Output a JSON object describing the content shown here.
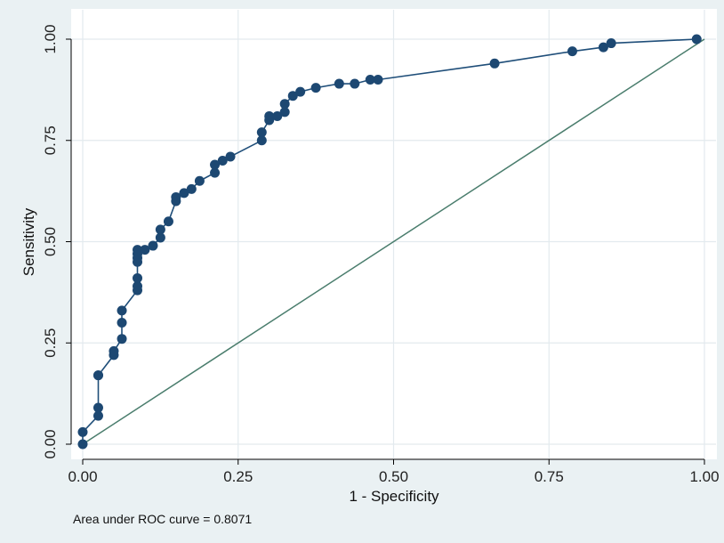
{
  "chart_data": {
    "type": "line",
    "xlabel": "1 - Specificity",
    "ylabel": "Sensitivity",
    "xlim": [
      0,
      1
    ],
    "ylim": [
      0,
      1
    ],
    "x_ticks": [
      "0.00",
      "0.25",
      "0.50",
      "0.75",
      "1.00"
    ],
    "y_ticks": [
      "0.00",
      "0.25",
      "0.50",
      "0.75",
      "1.00"
    ],
    "grid": true,
    "note": "Area under ROC curve = 0.8071",
    "colors": {
      "curve": "#1f4e79",
      "marker": "#1d4872",
      "reference": "#4a7d6d",
      "grid": "#e3eaee",
      "plot_bg": "#ffffff",
      "outer_bg": "#eaf1f3"
    },
    "series": [
      {
        "x": [
          0.0,
          0.0,
          0.025,
          0.025,
          0.025,
          0.025,
          0.05,
          0.05,
          0.063,
          0.063,
          0.063,
          0.088,
          0.088,
          0.088,
          0.088,
          0.088,
          0.088,
          0.088,
          0.1,
          0.113,
          0.125,
          0.125,
          0.138,
          0.15,
          0.15,
          0.163,
          0.175,
          0.188,
          0.2125,
          0.2125,
          0.225,
          0.2375,
          0.288,
          0.288,
          0.3,
          0.3,
          0.313,
          0.325,
          0.325,
          0.338,
          0.35,
          0.375,
          0.4125,
          0.4375,
          0.4625,
          0.475,
          0.6625,
          0.7875,
          0.8375,
          0.85,
          0.9875
        ],
        "y": [
          0.0,
          0.03,
          0.07,
          0.09,
          0.17,
          0.17,
          0.22,
          0.23,
          0.26,
          0.3,
          0.33,
          0.38,
          0.39,
          0.41,
          0.45,
          0.46,
          0.47,
          0.48,
          0.48,
          0.49,
          0.51,
          0.53,
          0.55,
          0.6,
          0.61,
          0.62,
          0.63,
          0.65,
          0.67,
          0.69,
          0.7,
          0.71,
          0.75,
          0.77,
          0.8,
          0.81,
          0.81,
          0.82,
          0.84,
          0.86,
          0.87,
          0.88,
          0.89,
          0.89,
          0.9,
          0.9,
          0.94,
          0.97,
          0.98,
          0.99,
          1.0
        ]
      }
    ],
    "reference_line": {
      "x": [
        0,
        1
      ],
      "y": [
        0,
        1
      ]
    }
  }
}
